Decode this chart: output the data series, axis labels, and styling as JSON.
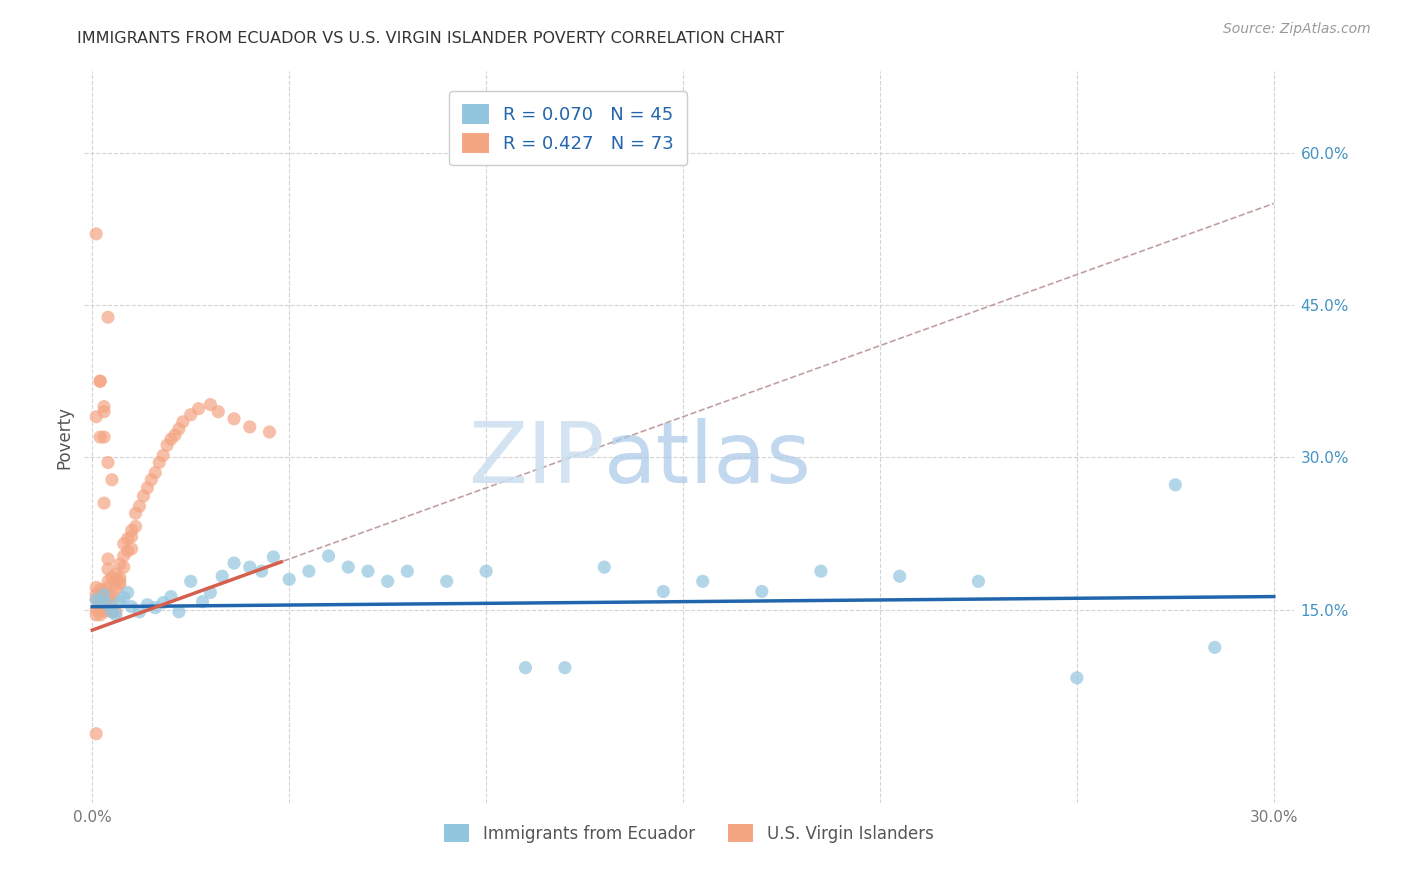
{
  "title": "IMMIGRANTS FROM ECUADOR VS U.S. VIRGIN ISLANDER POVERTY CORRELATION CHART",
  "source": "Source: ZipAtlas.com",
  "ylabel": "Poverty",
  "xlim": [
    -0.002,
    0.305
  ],
  "ylim": [
    -0.04,
    0.68
  ],
  "background_color": "#ffffff",
  "blue_color": "#92c5de",
  "pink_color": "#f4a582",
  "blue_trend_color": "#2166ac",
  "pink_trend_color": "#d6604d",
  "pink_dash_color": "#c0a0a0",
  "grid_color": "#d0d0d0",
  "legend_label_blue": "R = 0.070   N = 45",
  "legend_label_pink": "R = 0.427   N = 73",
  "bottom_label_blue": "Immigrants from Ecuador",
  "bottom_label_pink": "U.S. Virgin Islanders",
  "watermark_zip": "ZIP",
  "watermark_atlas": "atlas",
  "blue_x": [
    0.001,
    0.002,
    0.003,
    0.004,
    0.005,
    0.006,
    0.007,
    0.008,
    0.009,
    0.01,
    0.012,
    0.014,
    0.016,
    0.018,
    0.02,
    0.022,
    0.025,
    0.028,
    0.03,
    0.033,
    0.036,
    0.04,
    0.043,
    0.046,
    0.05,
    0.055,
    0.06,
    0.065,
    0.07,
    0.075,
    0.08,
    0.09,
    0.1,
    0.11,
    0.12,
    0.13,
    0.145,
    0.155,
    0.17,
    0.185,
    0.205,
    0.225,
    0.25,
    0.275,
    0.285
  ],
  "blue_y": [
    0.16,
    0.158,
    0.165,
    0.155,
    0.148,
    0.145,
    0.158,
    0.162,
    0.167,
    0.153,
    0.148,
    0.155,
    0.152,
    0.157,
    0.163,
    0.148,
    0.178,
    0.158,
    0.167,
    0.183,
    0.196,
    0.192,
    0.188,
    0.202,
    0.18,
    0.188,
    0.203,
    0.192,
    0.188,
    0.178,
    0.188,
    0.178,
    0.188,
    0.093,
    0.093,
    0.192,
    0.168,
    0.178,
    0.168,
    0.188,
    0.183,
    0.178,
    0.083,
    0.273,
    0.113
  ],
  "pink_x": [
    0.001,
    0.001,
    0.001,
    0.001,
    0.002,
    0.002,
    0.002,
    0.002,
    0.002,
    0.003,
    0.003,
    0.003,
    0.003,
    0.004,
    0.004,
    0.004,
    0.004,
    0.004,
    0.005,
    0.005,
    0.005,
    0.006,
    0.006,
    0.006,
    0.007,
    0.007,
    0.007,
    0.008,
    0.008,
    0.008,
    0.009,
    0.009,
    0.01,
    0.01,
    0.01,
    0.011,
    0.011,
    0.012,
    0.013,
    0.014,
    0.015,
    0.016,
    0.017,
    0.018,
    0.019,
    0.02,
    0.021,
    0.022,
    0.023,
    0.025,
    0.027,
    0.03,
    0.032,
    0.036,
    0.04,
    0.045,
    0.001,
    0.001,
    0.002,
    0.003,
    0.004,
    0.005,
    0.006,
    0.007,
    0.001,
    0.003,
    0.004,
    0.005,
    0.003,
    0.003,
    0.002,
    0.002,
    0.001
  ],
  "pink_y": [
    0.16,
    0.165,
    0.15,
    0.172,
    0.158,
    0.163,
    0.17,
    0.155,
    0.145,
    0.152,
    0.158,
    0.148,
    0.168,
    0.162,
    0.172,
    0.178,
    0.19,
    0.2,
    0.165,
    0.158,
    0.182,
    0.17,
    0.185,
    0.178,
    0.175,
    0.182,
    0.195,
    0.192,
    0.203,
    0.215,
    0.208,
    0.22,
    0.21,
    0.222,
    0.228,
    0.232,
    0.245,
    0.252,
    0.262,
    0.27,
    0.278,
    0.285,
    0.295,
    0.302,
    0.312,
    0.318,
    0.322,
    0.328,
    0.335,
    0.342,
    0.348,
    0.352,
    0.345,
    0.338,
    0.33,
    0.325,
    0.145,
    0.028,
    0.375,
    0.345,
    0.438,
    0.148,
    0.148,
    0.178,
    0.34,
    0.32,
    0.295,
    0.278,
    0.255,
    0.35,
    0.375,
    0.32,
    0.52
  ]
}
